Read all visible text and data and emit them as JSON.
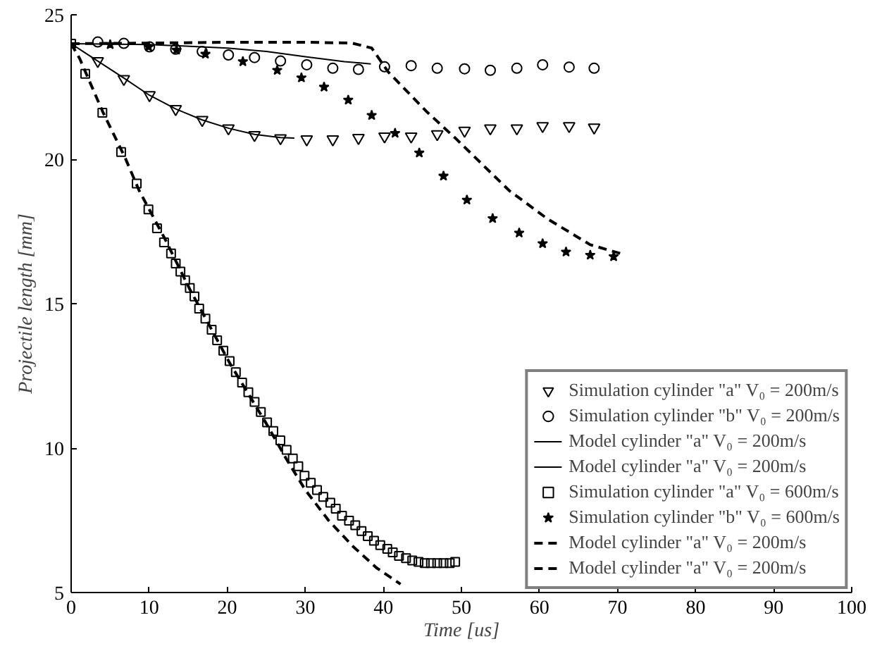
{
  "chart_data": {
    "type": "line",
    "xlabel": "Time [us]",
    "ylabel": "Projectile length [mm]",
    "xlim": [
      0,
      100
    ],
    "xticks": [
      0,
      10,
      20,
      30,
      40,
      50,
      60,
      70,
      80,
      90,
      100
    ],
    "ylim": [
      5,
      25
    ],
    "yticks": [
      5,
      10,
      15,
      20,
      25
    ],
    "grid": false,
    "legend": "bottom right",
    "series": [
      {
        "name": "Simulation cylinder \"a\" V₀ = 200m/s",
        "type": "scatter",
        "marker": "triangle",
        "color": "#000000",
        "x": [
          3.41,
          6.75,
          10.04,
          13.39,
          16.79,
          20.15,
          23.49,
          26.82,
          30.18,
          33.52,
          36.81,
          40.15,
          43.56,
          46.9,
          50.4,
          53.7,
          57.1,
          60.4,
          63.8,
          67.0
        ],
        "values": [
          23.4,
          22.78,
          22.22,
          21.74,
          21.36,
          21.07,
          20.84,
          20.73,
          20.69,
          20.69,
          20.74,
          20.79,
          20.79,
          20.87,
          20.99,
          21.07,
          21.07,
          21.15,
          21.15,
          21.1
        ]
      },
      {
        "name": "Simulation cylinder \"b\" V₀ = 200m/s",
        "type": "scatter",
        "marker": "circle",
        "color": "#000000",
        "x": [
          3.41,
          6.75,
          10.04,
          13.39,
          16.79,
          20.15,
          23.49,
          26.82,
          30.18,
          33.52,
          36.81,
          40.15,
          43.56,
          46.9,
          50.4,
          53.7,
          57.1,
          60.4,
          63.8,
          67.0
        ],
        "values": [
          24.06,
          24.01,
          23.89,
          23.81,
          23.73,
          23.61,
          23.52,
          23.4,
          23.27,
          23.15,
          23.11,
          23.2,
          23.24,
          23.15,
          23.13,
          23.08,
          23.15,
          23.27,
          23.19,
          23.15
        ]
      },
      {
        "name": "Model cylinder \"a\" V₀ = 200m/s",
        "line_style": "solid",
        "color": "#000000",
        "x": [
          0,
          3.4,
          6.8,
          10,
          13.4,
          16.8,
          20.2,
          23.5,
          26.8,
          28.6
        ],
        "values": [
          24,
          23.4,
          22.8,
          22.22,
          21.74,
          21.36,
          21.07,
          20.86,
          20.75,
          20.73
        ]
      },
      {
        "name": "Model cylinder \"a\" V₀ = 200m/s",
        "line_style": "solid",
        "color": "#000000",
        "x": [
          0,
          10,
          20,
          25,
          30,
          35,
          38.4
        ],
        "values": [
          24,
          23.97,
          23.85,
          23.73,
          23.55,
          23.38,
          23.3
        ]
      },
      {
        "name": "Simulation cylinder \"a\" V₀ = 600m/s",
        "type": "scatter",
        "marker": "square",
        "color": "#000000",
        "x": [
          0,
          1.8,
          4.0,
          6.4,
          8.4,
          9.9,
          11.0,
          11.9,
          12.8,
          13.4,
          14.0,
          14.6,
          15.2,
          15.8,
          16.4,
          17.2,
          18.0,
          18.7,
          19.5,
          20.3,
          21.1,
          21.9,
          22.7,
          23.5,
          24.3,
          25.1,
          25.9,
          26.8,
          27.6,
          28.4,
          29.1,
          29.9,
          30.7,
          31.5,
          32.3,
          33.2,
          33.9,
          34.7,
          35.6,
          36.4,
          37.2,
          38.0,
          38.8,
          39.6,
          40.5,
          41.2,
          42.0,
          42.9,
          43.7,
          44.5,
          45.3,
          46.1,
          46.9,
          47.7,
          48.5,
          49.2
        ],
        "values": [
          24,
          22.96,
          21.61,
          20.25,
          19.16,
          18.26,
          17.61,
          17.12,
          16.74,
          16.39,
          16.11,
          15.81,
          15.54,
          15.25,
          14.83,
          14.48,
          14.1,
          13.73,
          13.37,
          13.01,
          12.63,
          12.27,
          11.93,
          11.6,
          11.25,
          10.89,
          10.59,
          10.27,
          9.94,
          9.64,
          9.37,
          9.04,
          8.8,
          8.55,
          8.31,
          8.11,
          7.9,
          7.66,
          7.49,
          7.33,
          7.13,
          6.95,
          6.79,
          6.64,
          6.51,
          6.39,
          6.27,
          6.19,
          6.11,
          6.06,
          6.02,
          6.02,
          6.02,
          6.02,
          6.02,
          6.06
        ]
      },
      {
        "name": "Simulation cylinder \"b\" V₀ = 600m/s",
        "type": "scatter",
        "marker": "star",
        "color": "#000000",
        "x": [
          5,
          9.93,
          13.5,
          17.2,
          22,
          26.4,
          29.5,
          32.4,
          35.5,
          38.5,
          41.5,
          44.6,
          47.7,
          50.7,
          54,
          57.4,
          60.4,
          63.4,
          66.5,
          69.5
        ],
        "values": [
          23.97,
          23.89,
          23.78,
          23.64,
          23.38,
          23.08,
          22.82,
          22.5,
          22.05,
          21.52,
          20.9,
          20.22,
          19.42,
          18.59,
          17.95,
          17.45,
          17.08,
          16.79,
          16.68,
          16.63
        ]
      },
      {
        "name": "Model cylinder \"a\" V₀ = 200m/s",
        "line_style": "dashed",
        "color": "#000000",
        "x": [
          0,
          10,
          20,
          30,
          36,
          38.5,
          40.6,
          45.5,
          49.3,
          56.1,
          61,
          66.5,
          70.7
        ],
        "values": [
          24,
          24.02,
          24.05,
          24.05,
          24.02,
          23.85,
          23.03,
          21.66,
          20.71,
          18.92,
          17.94,
          17.04,
          16.71
        ]
      },
      {
        "name": "Model cylinder \"a\" V₀ = 200m/s",
        "line_style": "dashed",
        "color": "#000000",
        "x": [
          0,
          1.1,
          4.1,
          6.9,
          8.7,
          12,
          15.2,
          20.3,
          25,
          27.6,
          30,
          33,
          36.1,
          39.1,
          42.2
        ],
        "values": [
          24,
          23.48,
          21.61,
          20.06,
          18.92,
          17.25,
          15.5,
          12.95,
          10.85,
          9.61,
          8.55,
          7.49,
          6.6,
          5.86,
          5.29
        ]
      }
    ]
  }
}
